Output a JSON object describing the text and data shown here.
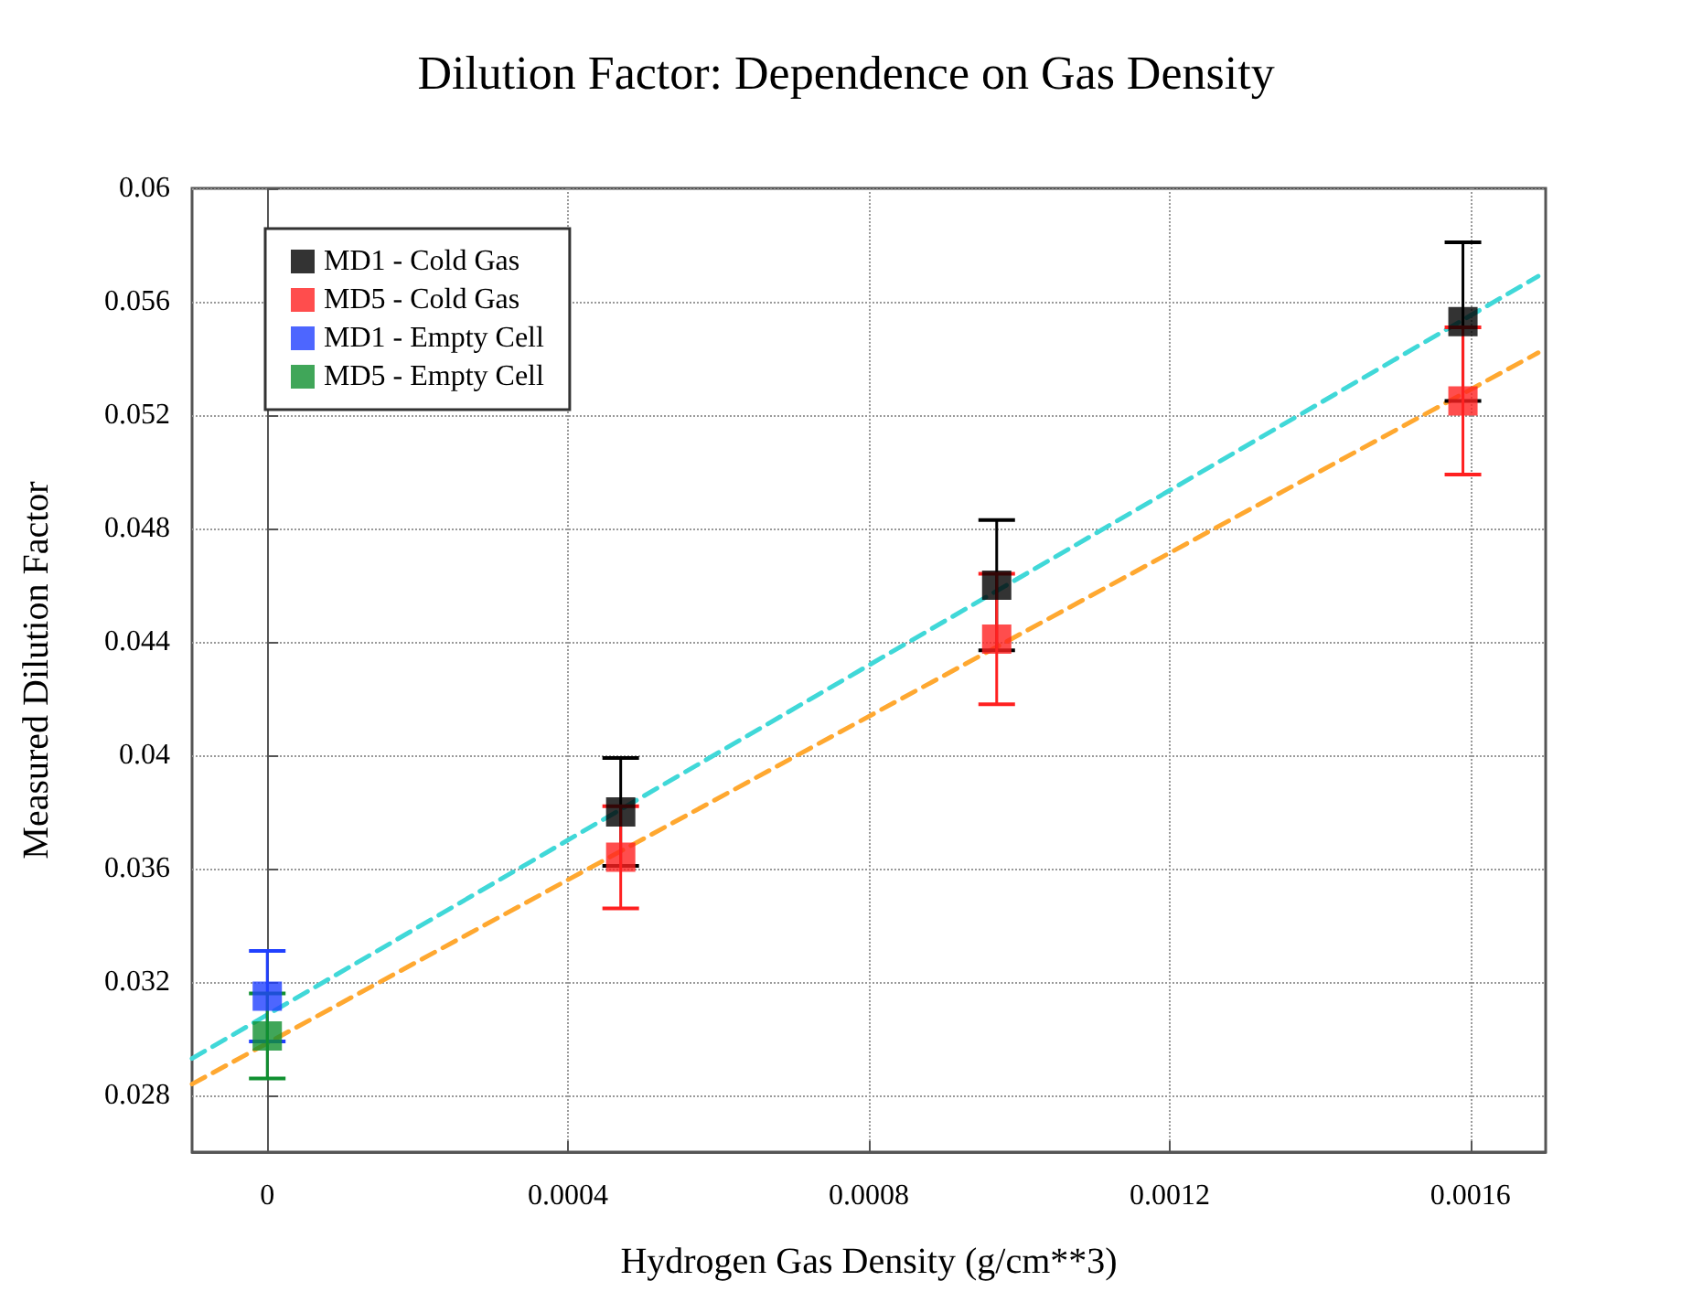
{
  "chart_data": {
    "type": "scatter",
    "title": "Dilution Factor: Dependence on Gas Density",
    "xlabel": "Hydrogen Gas Density (g/cm**3)",
    "ylabel": "Measured Dilution Factor",
    "xlim": [
      -0.0001,
      0.0017
    ],
    "xticks": [
      0,
      0.0004,
      0.0008,
      0.0012,
      0.0016
    ],
    "ylim": [
      0.026,
      0.06
    ],
    "yticks": [
      0.028,
      0.032,
      0.036,
      0.04,
      0.044,
      0.048,
      0.052,
      0.056,
      0.06
    ],
    "grid": true,
    "legend": "top left",
    "marker": "square",
    "series": [
      {
        "name": "MD1 - Cold Gas",
        "color": "#000000",
        "x": [
          0.00047,
          0.00097,
          0.00159
        ],
        "values": [
          0.038,
          0.046,
          0.0553
        ],
        "errors": [
          0.0019,
          0.0023,
          0.0028
        ]
      },
      {
        "name": "MD5 - Cold Gas",
        "color": "#ff2020",
        "x": [
          0.00047,
          0.00097,
          0.00159
        ],
        "values": [
          0.0364,
          0.0441,
          0.0525
        ],
        "errors": [
          0.0018,
          0.0023,
          0.0026
        ]
      },
      {
        "name": "MD1 - Empty Cell",
        "color": "#2040ff",
        "x": [
          0
        ],
        "values": [
          0.0315
        ],
        "errors": [
          0.0016
        ]
      },
      {
        "name": "MD5 - Empty Cell",
        "color": "#109030",
        "x": [
          0
        ],
        "values": [
          0.0301
        ],
        "errors": [
          0.0015
        ]
      },
      {
        "type": "line",
        "color": "#40d8d8",
        "x": [
          -0.0001,
          0.00169
        ],
        "values": [
          0.0293,
          0.0569
        ],
        "line_style": "dashed",
        "marker": "none"
      },
      {
        "type": "line",
        "color": "#ffa830",
        "x": [
          -0.0001,
          0.00169
        ],
        "values": [
          0.0284,
          0.0542
        ],
        "line_style": "dashed",
        "marker": "none"
      }
    ]
  }
}
